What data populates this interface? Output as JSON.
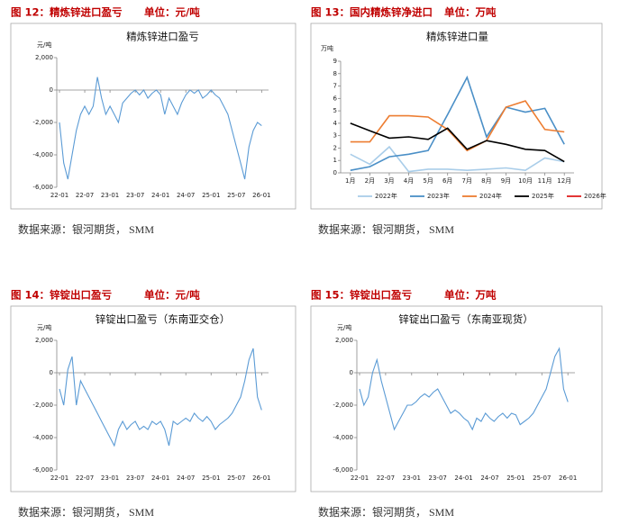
{
  "figures": [
    {
      "heading": "图 12：精炼锌进口盈亏",
      "unit_note": "单位：元/吨",
      "source": "数据来源：银河期货，  SMM"
    },
    {
      "heading": "图 13：国内精炼锌净进口",
      "unit_note": "单位：万吨",
      "source": "数据来源：银河期货，  SMM"
    },
    {
      "heading": "图 14：锌锭出口盈亏",
      "unit_note": "单位：元/吨",
      "source": "数据来源：银河期货，  SMM"
    },
    {
      "heading": "图 15：锌锭出口盈亏",
      "unit_note": "单位：万吨",
      "source": "数据来源：银河期货，  SMM"
    }
  ],
  "chart_data": [
    {
      "type": "line",
      "title": "精炼锌进口盈亏",
      "y_unit": "元/吨",
      "color": "#5b9bd5",
      "categories": [
        "22-01",
        null,
        null,
        null,
        null,
        null,
        "22-07",
        null,
        null,
        null,
        null,
        null,
        "23-01",
        null,
        null,
        null,
        null,
        null,
        "23-07",
        null,
        null,
        null,
        null,
        null,
        "24-01",
        null,
        null,
        null,
        null,
        null,
        "24-07",
        null,
        null,
        null,
        null,
        null,
        "25-01",
        null,
        null,
        null,
        null,
        null,
        "25-07",
        null,
        null,
        null,
        null,
        null,
        "26-01",
        null
      ],
      "values": [
        -2000,
        -4500,
        -5500,
        -4000,
        -2500,
        -1500,
        -1000,
        -1500,
        -1000,
        800,
        -500,
        -1500,
        -1000,
        -1500,
        -2000,
        -800,
        -500,
        -200,
        0,
        -300,
        0,
        -500,
        -200,
        0,
        -300,
        -1500,
        -500,
        -1000,
        -1500,
        -800,
        -300,
        0,
        -200,
        0,
        -500,
        -300,
        0,
        -300,
        -500,
        -1000,
        -1500,
        -2500,
        -3500,
        -4500,
        -5500,
        -3500,
        -2500,
        -2000,
        -2200,
        null
      ],
      "ylim": [
        -6000,
        2000
      ],
      "yticks": [
        {
          "value": -6000,
          "label": "-6,000"
        },
        {
          "value": -4000,
          "label": "-4,000"
        },
        {
          "value": -2000,
          "label": "-2,000"
        },
        0,
        {
          "value": 2000,
          "label": "2,000"
        }
      ]
    },
    {
      "type": "multiline",
      "title": "精炼锌进口量",
      "y_unit": "万吨",
      "categories": [
        "1月",
        "2月",
        "3月",
        "4月",
        "5月",
        "6月",
        "7月",
        "8月",
        "9月",
        "10月",
        "11月",
        "12月"
      ],
      "series": [
        {
          "name": "2022年",
          "color": "#a9cde9",
          "values": [
            1.5,
            0.7,
            2.1,
            0.1,
            0.3,
            0.3,
            0.2,
            0.3,
            0.4,
            0.2,
            1.2,
            0.9
          ]
        },
        {
          "name": "2023年",
          "color": "#4a8fc7",
          "values": [
            0.2,
            0.5,
            1.3,
            1.5,
            1.8,
            4.7,
            7.7,
            2.9,
            5.3,
            4.9,
            5.2,
            2.3
          ]
        },
        {
          "name": "2024年",
          "color": "#ed7d31",
          "values": [
            2.5,
            2.5,
            4.6,
            4.6,
            4.5,
            3.5,
            1.8,
            2.6,
            5.3,
            5.8,
            3.5,
            3.3
          ]
        },
        {
          "name": "2025年",
          "color": "#000000",
          "values": [
            4.0,
            3.4,
            2.8,
            2.9,
            2.7,
            3.6,
            1.9,
            2.6,
            2.3,
            1.9,
            1.8,
            0.9
          ]
        },
        {
          "name": "2026年",
          "color": "#e02020",
          "values": [
            null,
            null,
            null,
            null,
            null,
            null,
            null,
            null,
            null,
            null,
            null,
            null
          ]
        }
      ],
      "ylim": [
        0,
        9
      ],
      "yticks": [
        0,
        1,
        2,
        3,
        4,
        5,
        6,
        7,
        8,
        9
      ]
    },
    {
      "type": "line",
      "title": "锌锭出口盈亏（东南亚交仓）",
      "y_unit": "元/吨",
      "color": "#5b9bd5",
      "categories": [
        "22-01",
        null,
        null,
        null,
        null,
        null,
        "22-07",
        null,
        null,
        null,
        null,
        null,
        "23-01",
        null,
        null,
        null,
        null,
        null,
        "23-07",
        null,
        null,
        null,
        null,
        null,
        "24-01",
        null,
        null,
        null,
        null,
        null,
        "24-07",
        null,
        null,
        null,
        null,
        null,
        "25-01",
        null,
        null,
        null,
        null,
        null,
        "25-07",
        null,
        null,
        null,
        null,
        null,
        "26-01",
        null
      ],
      "values": [
        -1000,
        -2000,
        200,
        1000,
        -2000,
        -500,
        -1000,
        -1500,
        -2000,
        -2500,
        -3000,
        -3500,
        -4000,
        -4500,
        -3500,
        -3000,
        -3500,
        -3200,
        -3000,
        -3500,
        -3300,
        -3500,
        -3000,
        -3200,
        -3000,
        -3500,
        -4500,
        -3000,
        -3200,
        -3000,
        -2800,
        -3000,
        -2500,
        -2800,
        -3000,
        -2700,
        -3000,
        -3500,
        -3200,
        -3000,
        -2800,
        -2500,
        -2000,
        -1500,
        -500,
        800,
        1500,
        -1500,
        -2300,
        null
      ],
      "ylim": [
        -6000,
        2000
      ],
      "yticks": [
        {
          "value": -6000,
          "label": "-6,000"
        },
        {
          "value": -4000,
          "label": "-4,000"
        },
        {
          "value": -2000,
          "label": "-2,000"
        },
        0,
        {
          "value": 2000,
          "label": "2,000"
        }
      ]
    },
    {
      "type": "line",
      "title": "锌锭出口盈亏（东南亚现货）",
      "y_unit": "元/吨",
      "color": "#5b9bd5",
      "categories": [
        "22-01",
        null,
        null,
        null,
        null,
        null,
        "22-07",
        null,
        null,
        null,
        null,
        null,
        "23-01",
        null,
        null,
        null,
        null,
        null,
        "23-07",
        null,
        null,
        null,
        null,
        null,
        "24-01",
        null,
        null,
        null,
        null,
        null,
        "24-07",
        null,
        null,
        null,
        null,
        null,
        "25-01",
        null,
        null,
        null,
        null,
        null,
        "25-07",
        null,
        null,
        null,
        null,
        null,
        "26-01",
        null
      ],
      "values": [
        -1000,
        -2000,
        -1500,
        0,
        800,
        -500,
        -1500,
        -2500,
        -3500,
        -3000,
        -2500,
        -2000,
        -2000,
        -1800,
        -1500,
        -1300,
        -1500,
        -1200,
        -1000,
        -1500,
        -2000,
        -2500,
        -2300,
        -2500,
        -2800,
        -3000,
        -3500,
        -2800,
        -3000,
        -2500,
        -2800,
        -3000,
        -2700,
        -2500,
        -2800,
        -2500,
        -2600,
        -3200,
        -3000,
        -2800,
        -2500,
        -2000,
        -1500,
        -1000,
        0,
        1000,
        1500,
        -1000,
        -1800,
        null
      ],
      "ylim": [
        -6000,
        2000
      ],
      "yticks": [
        {
          "value": -6000,
          "label": "-6,000"
        },
        {
          "value": -4000,
          "label": "-4,000"
        },
        {
          "value": -2000,
          "label": "-2,000"
        },
        0,
        {
          "value": 2000,
          "label": "2,000"
        }
      ]
    }
  ]
}
